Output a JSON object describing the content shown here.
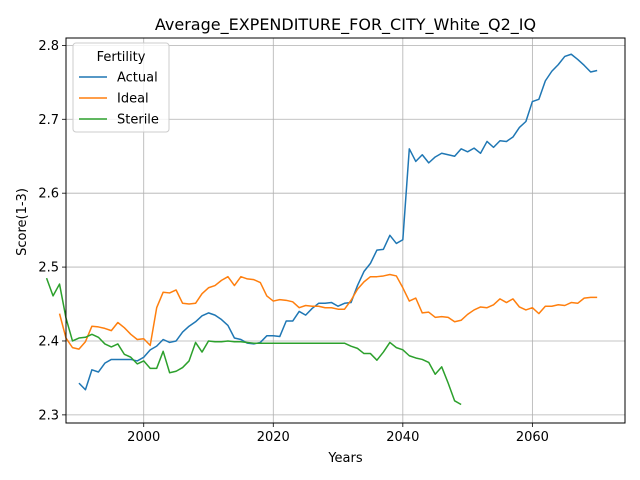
{
  "chart_data": {
    "type": "line",
    "title": "Average_EXPENDITURE_FOR_CITY_White_Q2_IQ",
    "xlabel": "Years",
    "ylabel": "Score(1-3)",
    "xlim": [
      1988.0,
      2074.3
    ],
    "ylim": [
      2.289,
      2.81
    ],
    "xticks": [
      2000,
      2020,
      2040,
      2060
    ],
    "yticks": [
      2.3,
      2.4,
      2.5,
      2.6,
      2.7,
      2.8
    ],
    "xtick_labels": [
      "2000",
      "2020",
      "2040",
      "2060"
    ],
    "ytick_labels": [
      "2.3",
      "2.4",
      "2.5",
      "2.6",
      "2.7",
      "2.8"
    ],
    "grid": true,
    "legend": {
      "title": "Fertility",
      "position": "upper-left"
    },
    "series": [
      {
        "name": "Actual",
        "color": "#1f77b4",
        "x": [
          1990,
          1991,
          1992,
          1993,
          1994,
          1995,
          1996,
          1997,
          1998,
          1999,
          2000,
          2001,
          2002,
          2003,
          2004,
          2005,
          2006,
          2007,
          2008,
          2009,
          2010,
          2011,
          2012,
          2013,
          2014,
          2015,
          2016,
          2017,
          2018,
          2019,
          2020,
          2021,
          2022,
          2023,
          2024,
          2025,
          2026,
          2027,
          2028,
          2029,
          2030,
          2031,
          2032,
          2033,
          2034,
          2035,
          2036,
          2037,
          2038,
          2039,
          2040,
          2041,
          2042,
          2043,
          2044,
          2045,
          2046,
          2047,
          2048,
          2049,
          2050,
          2051,
          2052,
          2053,
          2054,
          2055,
          2056,
          2057,
          2058,
          2059,
          2060,
          2061,
          2062,
          2063,
          2064,
          2065,
          2066,
          2067,
          2068,
          2069,
          2070
        ],
        "values": [
          2.343,
          2.334,
          2.361,
          2.358,
          2.37,
          2.375,
          2.375,
          2.375,
          2.375,
          2.373,
          2.378,
          2.388,
          2.393,
          2.402,
          2.398,
          2.4,
          2.412,
          2.42,
          2.426,
          2.434,
          2.438,
          2.435,
          2.429,
          2.421,
          2.404,
          2.402,
          2.397,
          2.396,
          2.398,
          2.407,
          2.407,
          2.406,
          2.427,
          2.427,
          2.44,
          2.435,
          2.444,
          2.451,
          2.451,
          2.452,
          2.447,
          2.451,
          2.452,
          2.475,
          2.494,
          2.505,
          2.523,
          2.524,
          2.543,
          2.532,
          2.537,
          2.66,
          2.643,
          2.652,
          2.641,
          2.649,
          2.654,
          2.652,
          2.65,
          2.66,
          2.656,
          2.661,
          2.654,
          2.67,
          2.662,
          2.671,
          2.67,
          2.676,
          2.689,
          2.697,
          2.724,
          2.727,
          2.752,
          2.765,
          2.774,
          2.785,
          2.788,
          2.781,
          2.773,
          2.764,
          2.766
        ]
      },
      {
        "name": "Ideal",
        "color": "#ff7f0e",
        "x": [
          1987,
          1988,
          1989,
          1990,
          1991,
          1992,
          1993,
          1994,
          1995,
          1996,
          1997,
          1998,
          1999,
          2000,
          2001,
          2002,
          2003,
          2004,
          2005,
          2006,
          2007,
          2008,
          2009,
          2010,
          2011,
          2012,
          2013,
          2014,
          2015,
          2016,
          2017,
          2018,
          2019,
          2020,
          2021,
          2022,
          2023,
          2024,
          2025,
          2026,
          2027,
          2028,
          2029,
          2030,
          2031,
          2032,
          2033,
          2034,
          2035,
          2036,
          2037,
          2038,
          2039,
          2040,
          2041,
          2042,
          2043,
          2044,
          2045,
          2046,
          2047,
          2048,
          2049,
          2050,
          2051,
          2052,
          2053,
          2054,
          2055,
          2056,
          2057,
          2058,
          2059,
          2060,
          2061,
          2062,
          2063,
          2064,
          2065,
          2066,
          2067,
          2068,
          2069,
          2070
        ],
        "values": [
          2.437,
          2.404,
          2.391,
          2.389,
          2.399,
          2.42,
          2.419,
          2.417,
          2.414,
          2.425,
          2.418,
          2.409,
          2.402,
          2.403,
          2.394,
          2.445,
          2.466,
          2.465,
          2.469,
          2.451,
          2.45,
          2.451,
          2.464,
          2.472,
          2.475,
          2.482,
          2.487,
          2.475,
          2.487,
          2.484,
          2.483,
          2.479,
          2.461,
          2.454,
          2.456,
          2.455,
          2.453,
          2.445,
          2.448,
          2.447,
          2.447,
          2.445,
          2.445,
          2.443,
          2.443,
          2.455,
          2.47,
          2.48,
          2.487,
          2.487,
          2.488,
          2.49,
          2.488,
          2.472,
          2.454,
          2.458,
          2.438,
          2.439,
          2.432,
          2.433,
          2.432,
          2.426,
          2.428,
          2.436,
          2.442,
          2.446,
          2.445,
          2.449,
          2.457,
          2.452,
          2.457,
          2.446,
          2.442,
          2.445,
          2.437,
          2.447,
          2.447,
          2.449,
          2.448,
          2.452,
          2.451,
          2.458,
          2.459,
          2.459
        ]
      },
      {
        "name": "Sterile",
        "color": "#2ca02c",
        "x": [
          1985,
          1986,
          1987,
          1988,
          1989,
          1990,
          1991,
          1992,
          1993,
          1994,
          1995,
          1996,
          1997,
          1998,
          1999,
          2000,
          2001,
          2002,
          2003,
          2004,
          2005,
          2006,
          2007,
          2008,
          2009,
          2010,
          2011,
          2012,
          2013,
          2014,
          2015,
          2016,
          2017,
          2018,
          2019,
          2020,
          2021,
          2022,
          2023,
          2024,
          2025,
          2026,
          2027,
          2028,
          2029,
          2030,
          2031,
          2032,
          2033,
          2034,
          2035,
          2036,
          2037,
          2038,
          2039,
          2040,
          2041,
          2042,
          2043,
          2044,
          2045,
          2046,
          2047,
          2048,
          2049
        ],
        "values": [
          2.485,
          2.461,
          2.477,
          2.431,
          2.4,
          2.404,
          2.405,
          2.409,
          2.405,
          2.396,
          2.392,
          2.396,
          2.382,
          2.378,
          2.369,
          2.373,
          2.363,
          2.363,
          2.386,
          2.357,
          2.359,
          2.364,
          2.373,
          2.398,
          2.385,
          2.4,
          2.399,
          2.399,
          2.4,
          2.399,
          2.399,
          2.398,
          2.397,
          2.397,
          2.397,
          2.397,
          2.397,
          2.397,
          2.397,
          2.397,
          2.397,
          2.397,
          2.397,
          2.397,
          2.397,
          2.397,
          2.397,
          2.393,
          2.39,
          2.383,
          2.383,
          2.374,
          2.385,
          2.398,
          2.391,
          2.388,
          2.38,
          2.377,
          2.375,
          2.371,
          2.355,
          2.365,
          2.343,
          2.319,
          2.314
        ]
      }
    ]
  }
}
